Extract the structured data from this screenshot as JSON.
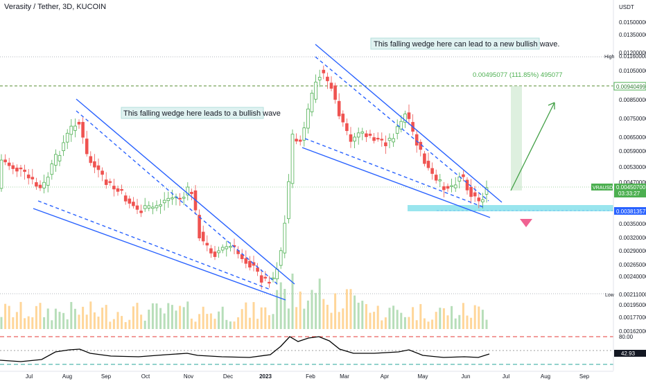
{
  "header": {
    "title": "Verasity / Tether, 3D, KUCOIN",
    "currency": "USDT"
  },
  "colors": {
    "up": "#4caf50",
    "down": "#ef5350",
    "wedge": "#2962ff",
    "support_zone": "#80deea",
    "rsi_line": "#000000"
  },
  "y_axis_labels": [
    "0.01500000",
    "0.01350000",
    "0.01200000",
    "0.01050000",
    "0.00850000",
    "0.00750000",
    "0.00650000",
    "0.00590000",
    "0.00530000",
    "0.00470000",
    "0.00350000",
    "0.00320000",
    "0.00290000",
    "0.00265000",
    "0.00240000",
    "0.00195000",
    "0.00177000",
    "0.00162000"
  ],
  "markers": {
    "high": {
      "label": "High",
      "value": "0.01160000"
    },
    "low": {
      "label": "Low",
      "value": "0.00211000"
    },
    "target": {
      "value": "0.00940499"
    },
    "current": {
      "symbol": "VRAUSDT",
      "value": "0.00450700",
      "countdown": "03:33:27"
    },
    "support": {
      "value": "0.00381357"
    }
  },
  "x_axis_labels": [
    "Jul",
    "Aug",
    "Sep",
    "Oct",
    "Nov",
    "Dec",
    "2023",
    "Feb",
    "Mar",
    "Apr",
    "May",
    "Jun",
    "Jul",
    "Aug",
    "Sep"
  ],
  "annotations": {
    "left_wedge": "This falling wedge here leads to a bullish wave",
    "right_wedge": "This falling wedge here can lead to a new bullish wave.",
    "measure": "0.00495077 (111.85%) 495077"
  },
  "rsi": {
    "upper_label": "80.00",
    "value": "42.93"
  },
  "chart_data": {
    "type": "candlestick",
    "title": "Verasity / Tether, 3D, KUCOIN",
    "x": [
      "Jul",
      "Aug",
      "Sep",
      "Oct",
      "Nov",
      "Dec",
      "2023",
      "Feb",
      "Mar",
      "Apr",
      "May",
      "Jun"
    ],
    "close_approx": [
      0.0044,
      0.0072,
      0.0047,
      0.004,
      0.0049,
      0.0024,
      0.0027,
      0.0105,
      0.0068,
      0.0075,
      0.0042,
      0.0045
    ],
    "high": 0.0116,
    "low": 0.00211,
    "last": 0.004507,
    "projection_gain": "0.00495077 (111.85%) 495077"
  }
}
